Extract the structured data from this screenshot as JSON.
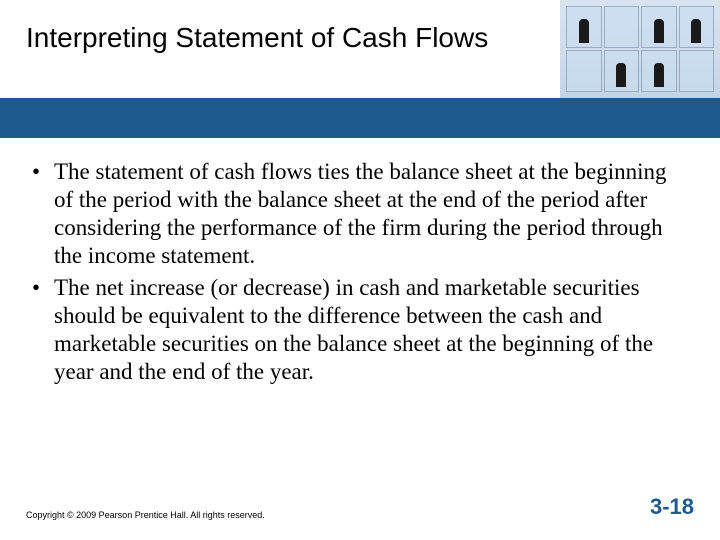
{
  "slide": {
    "title": "Interpreting Statement of Cash Flows",
    "bullets": [
      "The statement of cash flows ties the balance sheet at the beginning of the period with the balance sheet at the end of the period after considering the performance of the firm during the period through the income statement.",
      "The net increase (or decrease) in cash and marketable securities should be equivalent to the difference between the cash and marketable securities on the balance sheet at the beginning of the year and the end of the year."
    ],
    "copyright": "Copyright © 2009 Pearson Prentice Hall. All rights reserved.",
    "page_number": "3-18"
  },
  "style": {
    "accent_color": "#1e5a8e",
    "title_fontsize": 28,
    "body_fontsize": 23,
    "body_font": "Times New Roman",
    "title_font": "Arial",
    "background": "#ffffff"
  }
}
